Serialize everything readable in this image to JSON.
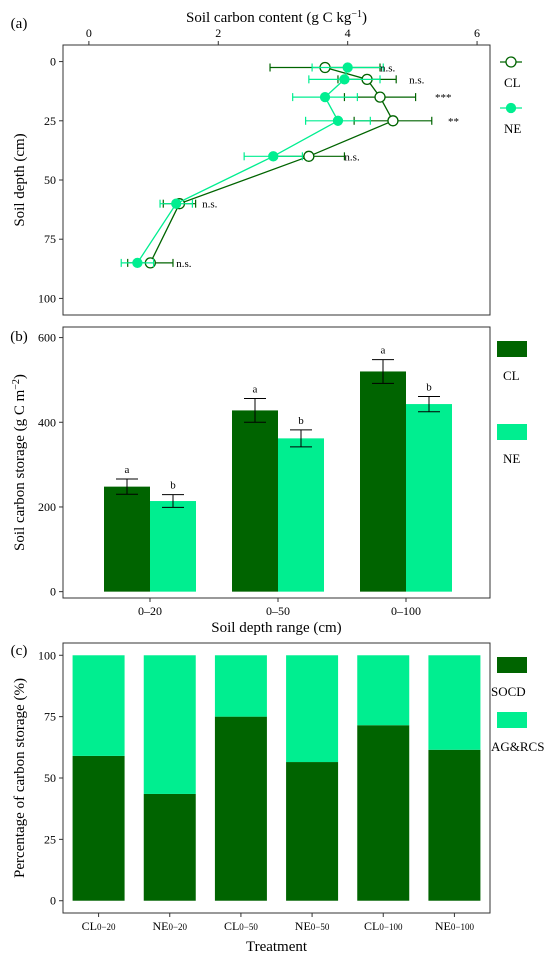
{
  "colors": {
    "CL": "#006400",
    "NE": "#00EE90",
    "frame": "#333333",
    "tick": "#333333"
  },
  "chart_data": [
    {
      "panel": "(a)",
      "type": "line",
      "xlabel": "Soil carbon content (g C kg",
      "xlabel_sup": "−1",
      "xlabel_end": ")",
      "ylabel": "Soil depth (cm)",
      "xlim": [
        -0.4,
        6.2
      ],
      "ylim": [
        0,
        100
      ],
      "y_reversed": true,
      "x_axis_position": "top",
      "x_ticks": [
        0,
        2,
        4,
        6
      ],
      "y_ticks": [
        0,
        25,
        50,
        75,
        100
      ],
      "grid": false,
      "legend": "right",
      "series": [
        {
          "name": "CL",
          "marker": "open-circle",
          "x": [
            3.65,
            4.3,
            4.5,
            4.7,
            3.4,
            1.4,
            0.95
          ],
          "err": [
            0.85,
            0.45,
            0.55,
            0.6,
            0.55,
            0.25,
            0.35
          ],
          "y": [
            2.5,
            7.5,
            15,
            25,
            40,
            60,
            85
          ]
        },
        {
          "name": "NE",
          "marker": "filled-circle",
          "x": [
            4.0,
            3.95,
            3.65,
            3.85,
            2.85,
            1.35,
            0.75
          ],
          "err": [
            0.55,
            0.55,
            0.5,
            0.5,
            0.45,
            0.25,
            0.25
          ],
          "y": [
            2.5,
            7.5,
            15,
            25,
            40,
            60,
            85
          ]
        }
      ],
      "significance": [
        {
          "y": 2.5,
          "x": 4.5,
          "label": "n.s."
        },
        {
          "y": 7.5,
          "x": 4.95,
          "label": "n.s."
        },
        {
          "y": 15,
          "x": 5.35,
          "label": "***"
        },
        {
          "y": 25,
          "x": 5.55,
          "label": "**"
        },
        {
          "y": 40,
          "x": 3.95,
          "label": "n.s."
        },
        {
          "y": 60,
          "x": 1.75,
          "label": "n.s."
        },
        {
          "y": 85,
          "x": 1.35,
          "label": "n.s."
        }
      ]
    },
    {
      "panel": "(b)",
      "type": "bar",
      "ylabel": "Soil carbon storage (g C m",
      "ylabel_sup": "−2",
      "ylabel_end": ")",
      "xlabel": "Soil depth range (cm)",
      "categories": [
        "0–20",
        "0–50",
        "0–100"
      ],
      "ylim": [
        -15,
        625
      ],
      "y_ticks": [
        0,
        200,
        400,
        600
      ],
      "grid": false,
      "legend": "right",
      "series": [
        {
          "name": "CL",
          "values": [
            248,
            428,
            520
          ],
          "err": [
            18,
            28,
            28
          ],
          "letters": [
            "a",
            "a",
            "a"
          ]
        },
        {
          "name": "NE",
          "values": [
            214,
            362,
            443
          ],
          "err": [
            15,
            20,
            18
          ],
          "letters": [
            "b",
            "b",
            "b"
          ]
        }
      ]
    },
    {
      "panel": "(c)",
      "type": "bar",
      "stacked": true,
      "ylabel": "Percentage of  carbon storage (%)",
      "xlabel": "Treatment",
      "categories": [
        {
          "main": "CL",
          "sub": "0−20"
        },
        {
          "main": "NE",
          "sub": "0−20"
        },
        {
          "main": "CL",
          "sub": "0−50"
        },
        {
          "main": "NE",
          "sub": "0−50"
        },
        {
          "main": "CL",
          "sub": "0−100"
        },
        {
          "main": "NE",
          "sub": "0−100"
        }
      ],
      "ylim": [
        -5,
        105
      ],
      "y_ticks": [
        0,
        25,
        50,
        75,
        100
      ],
      "grid": false,
      "legend": "right",
      "series": [
        {
          "name": "SOCD",
          "values": [
            59,
            43.5,
            75,
            56.5,
            71.5,
            61.5
          ]
        },
        {
          "name": "AG&RCS",
          "values": [
            41,
            56.5,
            25,
            43.5,
            28.5,
            38.5
          ]
        }
      ]
    }
  ]
}
